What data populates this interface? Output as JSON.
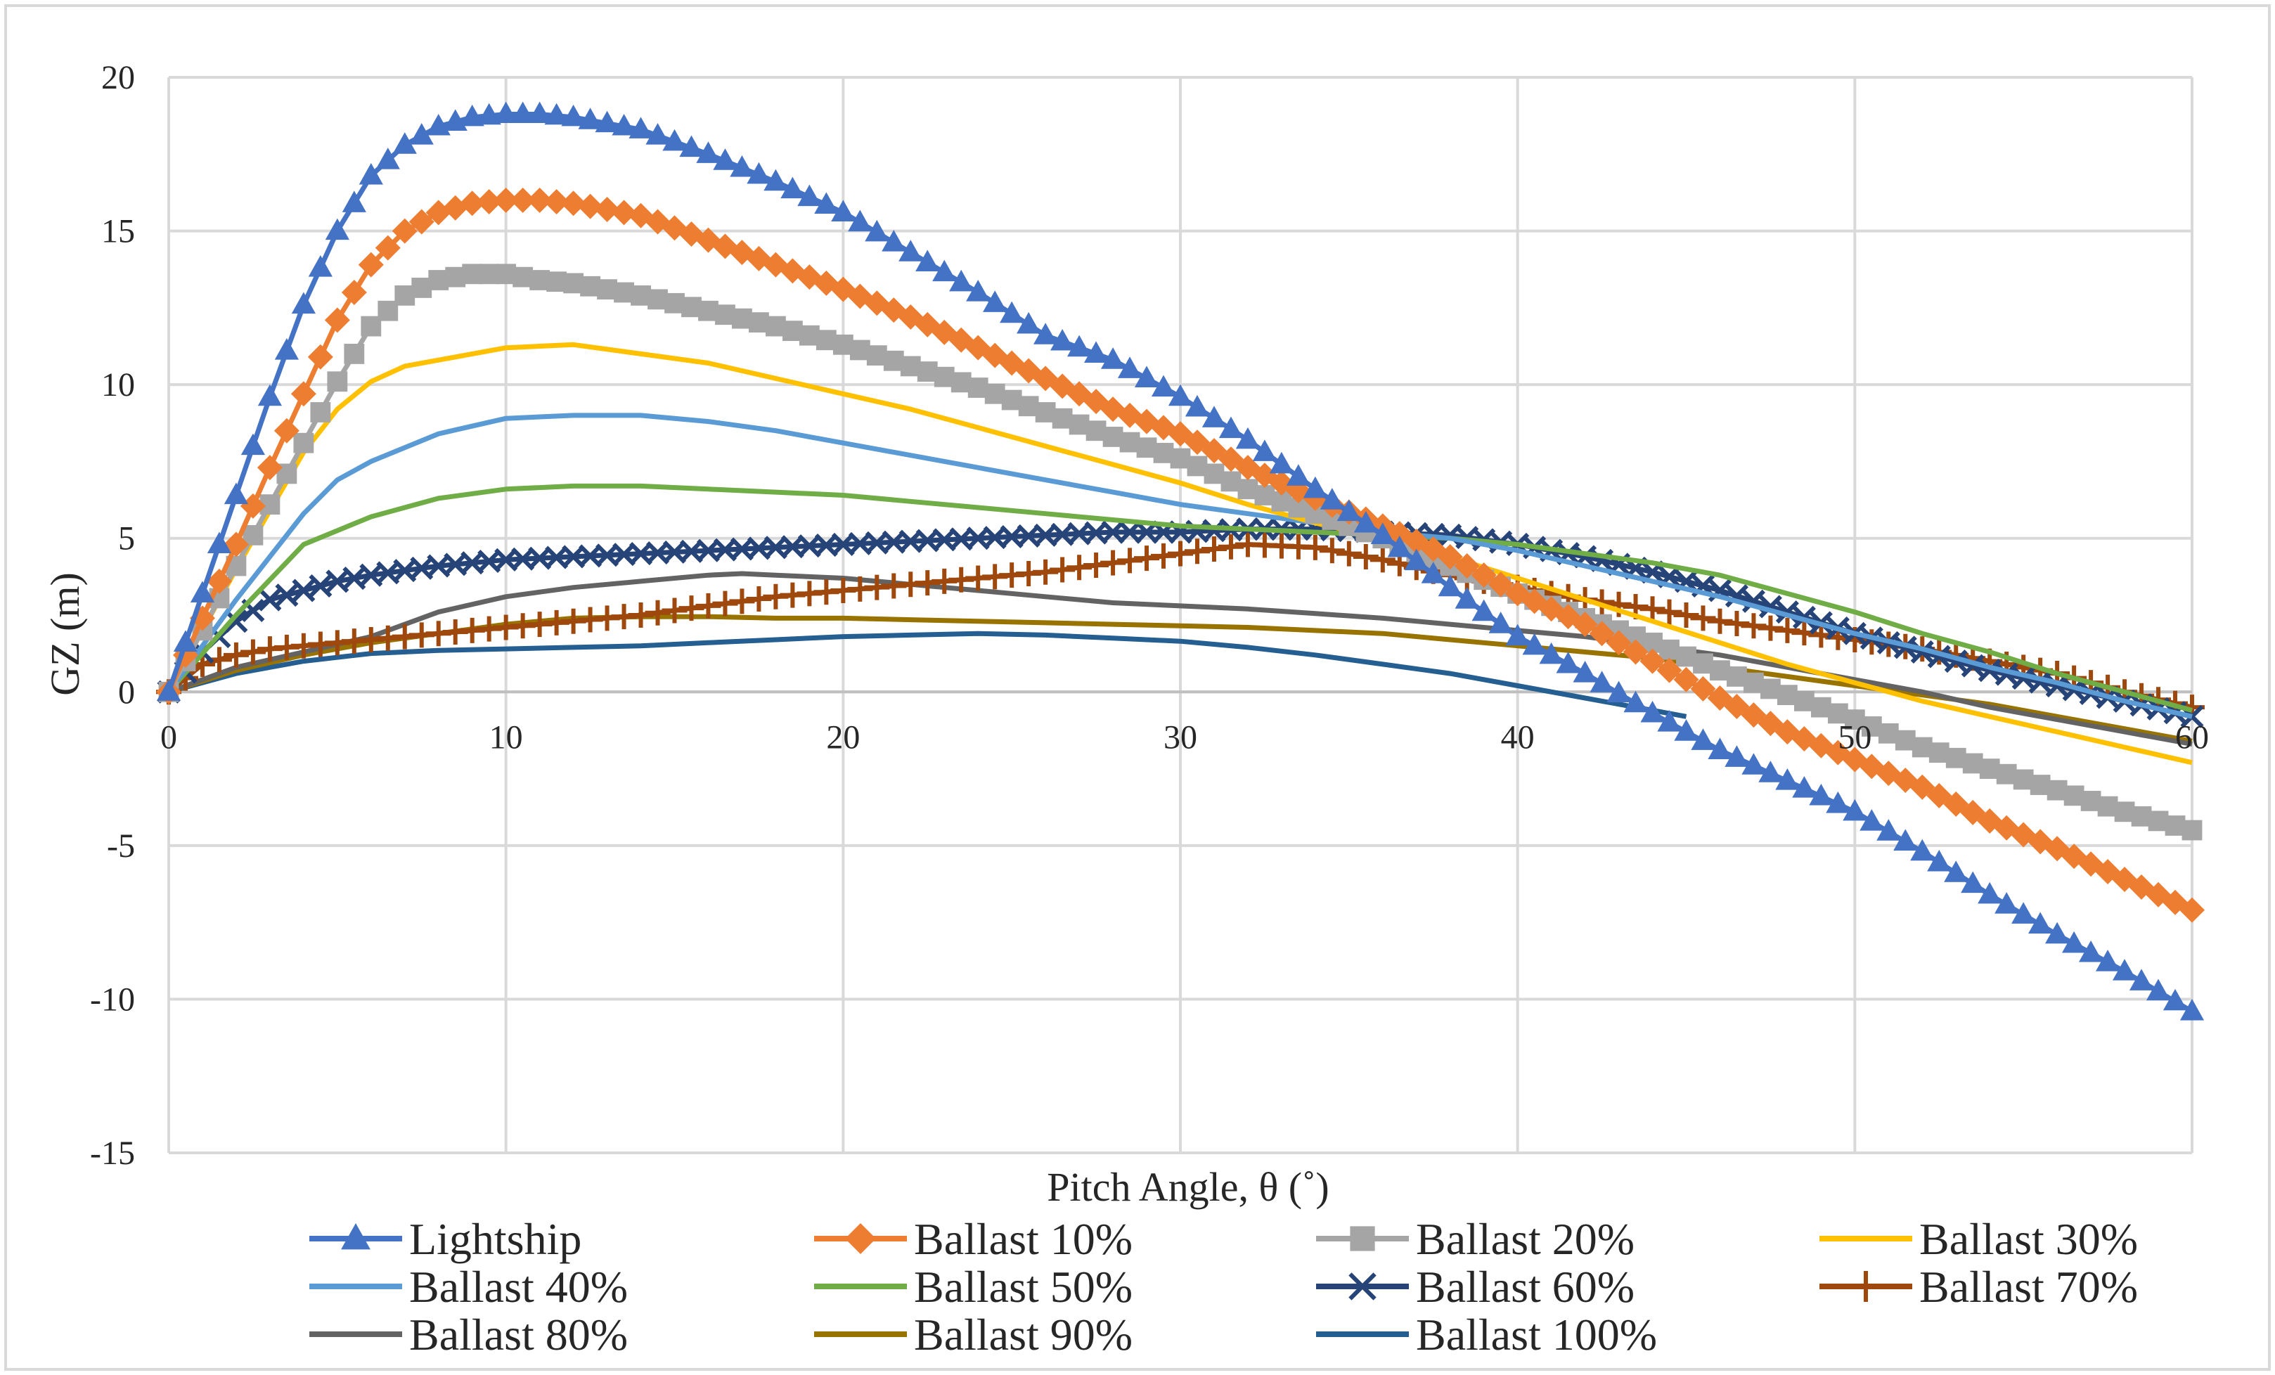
{
  "chart_data": {
    "type": "line",
    "title": "",
    "xlabel": "Pitch Angle, θ (˚)",
    "ylabel": "GZ (m)",
    "xlim": [
      0,
      60
    ],
    "ylim": [
      -15,
      20
    ],
    "xticks": [
      0,
      10,
      20,
      30,
      40,
      50,
      60
    ],
    "yticks": [
      -15,
      -10,
      -5,
      0,
      5,
      10,
      15,
      20
    ],
    "x_tick_labels": [
      "0",
      "10",
      "20",
      "30",
      "40",
      "50",
      "60"
    ],
    "y_tick_labels": [
      "-15",
      "-10",
      "-5",
      "0",
      "5",
      "10",
      "15",
      "20"
    ],
    "grid": true,
    "legend_position": "bottom",
    "series": [
      {
        "name": "Lightship",
        "color": "#4472C4",
        "marker": "triangle",
        "x": [
          0,
          1,
          2,
          3,
          4,
          5,
          6,
          7,
          8,
          9,
          10,
          11,
          12,
          14,
          16,
          18,
          20,
          22,
          24,
          26,
          28,
          30,
          32,
          34,
          36,
          38,
          40,
          42,
          44,
          46,
          48,
          50,
          52,
          54,
          56,
          58,
          60
        ],
        "y": [
          0,
          3.2,
          6.4,
          9.6,
          12.6,
          15.0,
          16.8,
          17.8,
          18.4,
          18.7,
          18.8,
          18.8,
          18.7,
          18.3,
          17.5,
          16.6,
          15.6,
          14.3,
          13.0,
          11.6,
          10.8,
          9.6,
          8.2,
          6.6,
          5.1,
          3.4,
          1.8,
          0.6,
          -0.7,
          -1.9,
          -2.9,
          -3.9,
          -5.2,
          -6.6,
          -7.9,
          -9.1,
          -10.4
        ]
      },
      {
        "name": "Ballast 10%",
        "color": "#ED7D31",
        "marker": "diamond",
        "x": [
          0,
          1,
          2,
          3,
          4,
          5,
          6,
          7,
          8,
          9,
          10,
          11,
          12,
          14,
          16,
          18,
          20,
          22,
          24,
          26,
          28,
          30,
          32,
          34,
          36,
          38,
          40,
          42,
          44,
          46,
          48,
          50,
          52,
          54,
          56,
          58,
          60
        ],
        "y": [
          0,
          2.4,
          4.8,
          7.3,
          9.7,
          12.1,
          13.9,
          15.0,
          15.6,
          15.9,
          16.0,
          16.0,
          15.9,
          15.5,
          14.7,
          13.9,
          13.1,
          12.2,
          11.2,
          10.2,
          9.2,
          8.4,
          7.3,
          6.3,
          5.4,
          4.4,
          3.2,
          2.2,
          1.0,
          -0.2,
          -1.3,
          -2.2,
          -3.1,
          -4.2,
          -5.1,
          -6.1,
          -7.1
        ]
      },
      {
        "name": "Ballast 20%",
        "color": "#A5A5A5",
        "marker": "square",
        "x": [
          0,
          1,
          2,
          3,
          4,
          5,
          6,
          7,
          8,
          9,
          10,
          11,
          12,
          14,
          16,
          18,
          20,
          22,
          24,
          26,
          28,
          30,
          32,
          34,
          36,
          38,
          40,
          42,
          44,
          46,
          48,
          50,
          52,
          54,
          56,
          58,
          60
        ],
        "y": [
          0,
          2.0,
          4.1,
          6.1,
          8.1,
          10.1,
          11.9,
          12.9,
          13.4,
          13.6,
          13.6,
          13.4,
          13.3,
          12.9,
          12.4,
          11.9,
          11.3,
          10.6,
          9.9,
          9.1,
          8.3,
          7.6,
          6.6,
          5.8,
          5.0,
          4.1,
          3.2,
          2.4,
          1.6,
          0.7,
          -0.1,
          -0.9,
          -1.8,
          -2.5,
          -3.2,
          -3.9,
          -4.5
        ]
      },
      {
        "name": "Ballast 30%",
        "color": "#FFC000",
        "marker": "none",
        "x": [
          0,
          2,
          4,
          5,
          6,
          7,
          8,
          10,
          12,
          14,
          16,
          18,
          20,
          22,
          24,
          26,
          28,
          30,
          32,
          34,
          36,
          38,
          40,
          42,
          44,
          46,
          48,
          50,
          52,
          54,
          56,
          58,
          60
        ],
        "y": [
          0,
          4.0,
          7.8,
          9.2,
          10.1,
          10.6,
          10.8,
          11.2,
          11.3,
          11.0,
          10.7,
          10.2,
          9.7,
          9.2,
          8.6,
          8.0,
          7.4,
          6.8,
          6.1,
          5.5,
          5.0,
          4.4,
          3.7,
          3.0,
          2.3,
          1.6,
          0.9,
          0.3,
          -0.3,
          -0.8,
          -1.3,
          -1.8,
          -2.3
        ]
      },
      {
        "name": "Ballast 40%",
        "color": "#5B9BD5",
        "marker": "none",
        "x": [
          0,
          2,
          4,
          5,
          6,
          8,
          10,
          12,
          14,
          16,
          18,
          20,
          22,
          24,
          26,
          28,
          30,
          32,
          34,
          36,
          38,
          40,
          42,
          44,
          46,
          48,
          50,
          52,
          54,
          56,
          58,
          60
        ],
        "y": [
          0,
          3.0,
          5.8,
          6.9,
          7.5,
          8.4,
          8.9,
          9.0,
          9.0,
          8.8,
          8.5,
          8.1,
          7.7,
          7.3,
          6.9,
          6.5,
          6.1,
          5.8,
          5.5,
          5.2,
          5.0,
          4.6,
          4.1,
          3.6,
          3.1,
          2.5,
          1.9,
          1.4,
          0.8,
          0.3,
          -0.3,
          -0.8
        ]
      },
      {
        "name": "Ballast 50%",
        "color": "#70AD47",
        "marker": "none",
        "x": [
          0,
          2,
          4,
          6,
          8,
          10,
          12,
          14,
          16,
          18,
          20,
          22,
          24,
          26,
          28,
          30,
          32,
          34,
          36,
          38,
          40,
          42,
          44,
          46,
          48,
          50,
          52,
          54,
          56,
          58,
          60
        ],
        "y": [
          0,
          2.5,
          4.8,
          5.7,
          6.3,
          6.6,
          6.7,
          6.7,
          6.6,
          6.5,
          6.4,
          6.2,
          6.0,
          5.8,
          5.6,
          5.4,
          5.3,
          5.2,
          5.1,
          5.0,
          4.8,
          4.5,
          4.2,
          3.8,
          3.2,
          2.6,
          1.9,
          1.3,
          0.6,
          0.0,
          -0.6
        ]
      },
      {
        "name": "Ballast 60%",
        "color": "#264478",
        "marker": "x",
        "x": [
          0,
          1,
          2,
          3,
          4,
          5,
          6,
          8,
          10,
          12,
          14,
          16,
          18,
          20,
          22,
          24,
          26,
          28,
          30,
          32,
          34,
          36,
          38,
          40,
          42,
          44,
          46,
          48,
          50,
          52,
          54,
          56,
          58,
          60
        ],
        "y": [
          0,
          1.3,
          2.3,
          3.0,
          3.3,
          3.6,
          3.8,
          4.1,
          4.3,
          4.4,
          4.5,
          4.6,
          4.7,
          4.8,
          4.9,
          5.0,
          5.1,
          5.2,
          5.2,
          5.3,
          5.3,
          5.2,
          5.1,
          4.8,
          4.4,
          3.9,
          3.3,
          2.6,
          1.9,
          1.3,
          0.7,
          0.2,
          -0.3,
          -0.8
        ]
      },
      {
        "name": "Ballast 70%",
        "color": "#9E480E",
        "marker": "plus",
        "x": [
          0,
          1,
          2,
          3,
          4,
          5,
          6,
          8,
          10,
          12,
          14,
          16,
          18,
          20,
          22,
          24,
          26,
          28,
          30,
          32,
          34,
          36,
          38,
          40,
          42,
          44,
          46,
          48,
          50,
          52,
          54,
          56,
          58,
          60
        ],
        "y": [
          0,
          0.9,
          1.2,
          1.4,
          1.5,
          1.6,
          1.7,
          1.9,
          2.1,
          2.3,
          2.5,
          2.8,
          3.1,
          3.3,
          3.5,
          3.7,
          3.9,
          4.2,
          4.5,
          4.8,
          4.7,
          4.3,
          3.8,
          3.4,
          3.0,
          2.7,
          2.3,
          2.0,
          1.7,
          1.4,
          1.0,
          0.6,
          0.0,
          -0.5
        ]
      },
      {
        "name": "Ballast 80%",
        "color": "#636363",
        "marker": "none",
        "x": [
          0,
          2,
          4,
          6,
          8,
          10,
          12,
          14,
          16,
          17,
          18,
          20,
          22,
          24,
          26,
          28,
          30,
          32,
          34,
          36,
          38,
          40,
          42,
          44,
          46,
          48,
          50,
          52,
          54,
          56,
          58,
          60
        ],
        "y": [
          0,
          0.8,
          1.3,
          1.8,
          2.6,
          3.1,
          3.4,
          3.6,
          3.8,
          3.85,
          3.8,
          3.7,
          3.5,
          3.3,
          3.1,
          2.9,
          2.8,
          2.7,
          2.55,
          2.4,
          2.2,
          2.0,
          1.8,
          1.5,
          1.2,
          0.8,
          0.4,
          0.0,
          -0.5,
          -0.9,
          -1.3,
          -1.7
        ]
      },
      {
        "name": "Ballast 90%",
        "color": "#997300",
        "marker": "none",
        "x": [
          0,
          2,
          4,
          6,
          8,
          10,
          12,
          14,
          16,
          18,
          20,
          22,
          24,
          26,
          28,
          30,
          32,
          34,
          36,
          38,
          40,
          42,
          44,
          46,
          48,
          50,
          52,
          54,
          56,
          58,
          60
        ],
        "y": [
          0,
          0.7,
          1.2,
          1.6,
          1.9,
          2.2,
          2.4,
          2.45,
          2.45,
          2.4,
          2.4,
          2.35,
          2.3,
          2.25,
          2.2,
          2.15,
          2.1,
          2.0,
          1.9,
          1.7,
          1.5,
          1.3,
          1.1,
          0.8,
          0.5,
          0.2,
          -0.1,
          -0.4,
          -0.8,
          -1.2,
          -1.6
        ]
      },
      {
        "name": "Ballast 100%",
        "color": "#255E91",
        "marker": "none",
        "x": [
          0,
          2,
          4,
          6,
          8,
          10,
          12,
          14,
          16,
          18,
          20,
          22,
          24,
          26,
          28,
          30,
          32,
          34,
          36,
          38,
          40,
          42,
          44,
          45
        ],
        "y": [
          0,
          0.6,
          1.0,
          1.25,
          1.35,
          1.4,
          1.45,
          1.5,
          1.6,
          1.7,
          1.8,
          1.85,
          1.9,
          1.85,
          1.75,
          1.65,
          1.45,
          1.2,
          0.9,
          0.6,
          0.2,
          -0.2,
          -0.6,
          -0.8
        ]
      }
    ]
  }
}
